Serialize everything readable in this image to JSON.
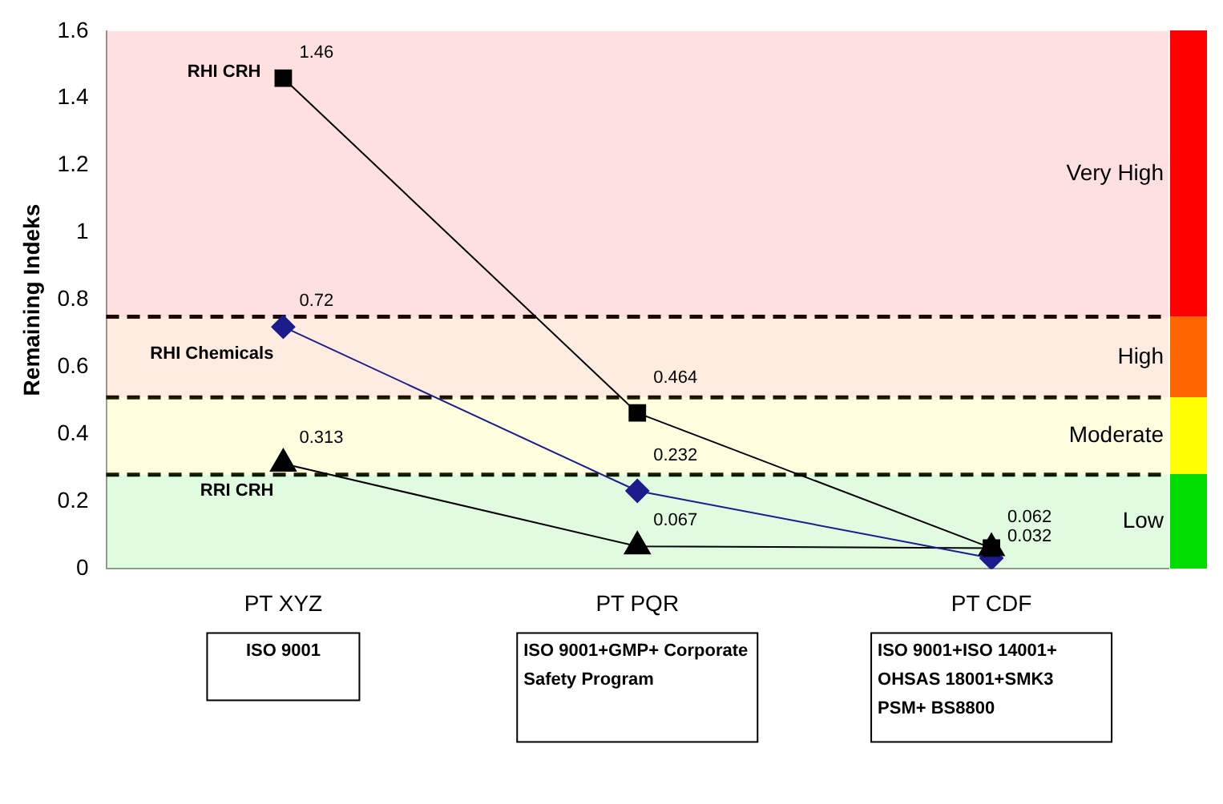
{
  "chart_data": {
    "type": "line",
    "ylabel": "Remaining Indeks",
    "categories": [
      "PT XYZ",
      "PT PQR",
      "PT CDF"
    ],
    "series": [
      {
        "name": "RHI CRH",
        "color": "#000000",
        "marker": "square",
        "values": [
          1.46,
          0.464,
          0.062
        ],
        "value_labels": [
          "1.46",
          "0.464",
          "0.062"
        ]
      },
      {
        "name": "RHI Chemicals",
        "color": "#1c1c8c",
        "marker": "diamond",
        "values": [
          0.72,
          0.232,
          0.032
        ],
        "value_labels": [
          "0.72",
          "0.232",
          "0.032"
        ]
      },
      {
        "name": "RRI CRH",
        "color": "#000000",
        "marker": "triangle",
        "values": [
          0.313,
          0.067,
          0.062
        ],
        "value_labels": [
          "0.313",
          "0.067",
          null
        ]
      }
    ],
    "ylim": [
      0,
      1.6
    ],
    "yticks": [
      0,
      0.2,
      0.4,
      0.6,
      0.8,
      1,
      1.2,
      1.4,
      1.6
    ],
    "grid": false,
    "legend": false,
    "ref_lines": [
      {
        "axis": "y",
        "value": 0.75,
        "line_style": "dashed",
        "color": "#000000"
      },
      {
        "axis": "y",
        "value": 0.51,
        "line_style": "dashed",
        "color": "#000000"
      },
      {
        "axis": "y",
        "value": 0.28,
        "line_style": "dashed",
        "color": "#000000"
      }
    ],
    "bands": [
      {
        "axis": "y",
        "from": 0.75,
        "to": 1.6,
        "label": "Very High",
        "color": "#ff0000"
      },
      {
        "axis": "y",
        "from": 0.51,
        "to": 0.75,
        "label": "High",
        "color": "#ff6600"
      },
      {
        "axis": "y",
        "from": 0.28,
        "to": 0.51,
        "label": "Moderate",
        "color": "#ffff00"
      },
      {
        "axis": "y",
        "from": 0,
        "to": 0.28,
        "label": "Low",
        "color": "#00dd00"
      }
    ],
    "annotations": [
      "ISO 9001",
      "ISO 9001+GMP+ Corporate Safety Program",
      "ISO 9001+ISO 14001+ OHSAS 18001+SMK3 PSM+ BS8800"
    ]
  }
}
